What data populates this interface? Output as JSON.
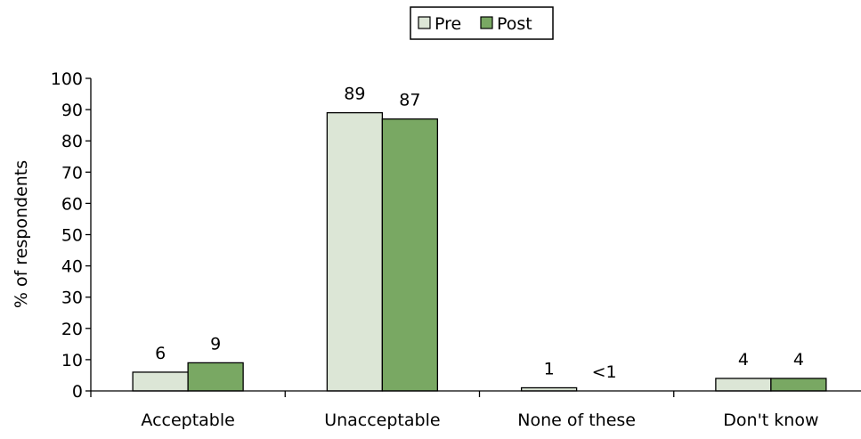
{
  "colors": {
    "pre": "#dce6d6",
    "post": "#79a863",
    "stroke": "#000000",
    "axis": "#000000"
  },
  "chart_data": {
    "type": "bar",
    "title": "",
    "xlabel": "",
    "ylabel": "% of respondents",
    "ylim": [
      0,
      100
    ],
    "yticks": [
      "0",
      "10",
      "20",
      "30",
      "40",
      "50",
      "60",
      "70",
      "80",
      "90",
      "100"
    ],
    "grid": false,
    "legend_position": "top-center",
    "categories": [
      "Acceptable",
      "Unacceptable",
      "None of these",
      "Don't know"
    ],
    "series": [
      {
        "name": "Pre",
        "values": [
          6,
          89,
          1,
          4
        ],
        "labels": [
          "6",
          "89",
          "1",
          "4"
        ]
      },
      {
        "name": "Post",
        "values": [
          9,
          87,
          0,
          4
        ],
        "labels": [
          "9",
          "87",
          "<1",
          "4"
        ]
      }
    ]
  }
}
